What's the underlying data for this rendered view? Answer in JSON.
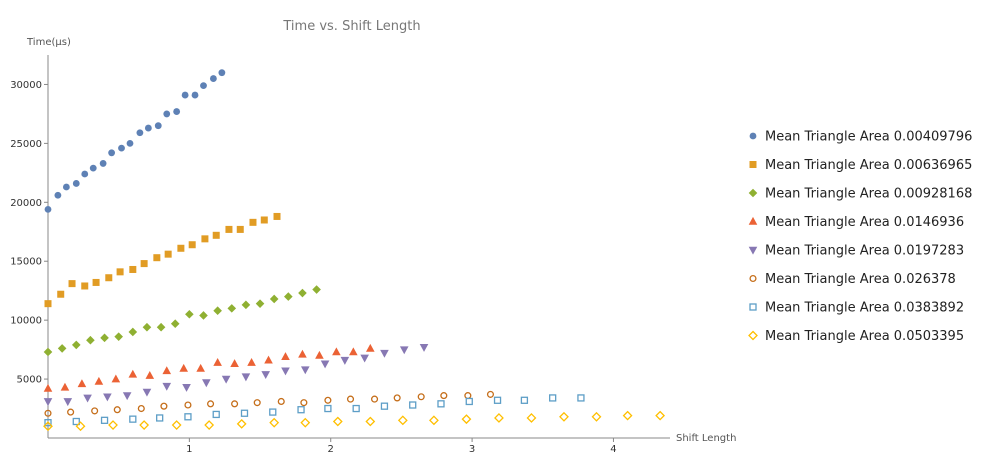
{
  "chart_data": {
    "type": "scatter",
    "title": "Time vs. Shift Length",
    "ylabel": "Time(μs)",
    "xlabel": "Shift Length",
    "xlim": [
      0,
      4.4
    ],
    "ylim": [
      0,
      32500
    ],
    "x_ticks": [
      1,
      2,
      3,
      4
    ],
    "y_ticks": [
      5000,
      10000,
      15000,
      20000,
      25000,
      30000
    ],
    "grid": false,
    "legend_position": "right",
    "series": [
      {
        "name": "Mean Triangle Area 0.00409796",
        "marker": "circle",
        "color": "#5e81b5",
        "points": [
          [
            0.0,
            19400
          ],
          [
            0.07,
            20600
          ],
          [
            0.13,
            21300
          ],
          [
            0.2,
            21600
          ],
          [
            0.26,
            22400
          ],
          [
            0.32,
            22900
          ],
          [
            0.39,
            23300
          ],
          [
            0.45,
            24200
          ],
          [
            0.52,
            24600
          ],
          [
            0.58,
            25000
          ],
          [
            0.65,
            25900
          ],
          [
            0.71,
            26300
          ],
          [
            0.78,
            26500
          ],
          [
            0.84,
            27500
          ],
          [
            0.91,
            27700
          ],
          [
            0.97,
            29100
          ],
          [
            1.04,
            29100
          ],
          [
            1.1,
            29900
          ],
          [
            1.17,
            30500
          ],
          [
            1.23,
            31000
          ]
        ]
      },
      {
        "name": "Mean Triangle Area 0.00636965",
        "marker": "square",
        "color": "#e19c24",
        "points": [
          [
            0.0,
            11400
          ],
          [
            0.09,
            12200
          ],
          [
            0.17,
            13100
          ],
          [
            0.26,
            12900
          ],
          [
            0.34,
            13200
          ],
          [
            0.43,
            13600
          ],
          [
            0.51,
            14100
          ],
          [
            0.6,
            14300
          ],
          [
            0.68,
            14800
          ],
          [
            0.77,
            15300
          ],
          [
            0.85,
            15600
          ],
          [
            0.94,
            16100
          ],
          [
            1.02,
            16400
          ],
          [
            1.11,
            16900
          ],
          [
            1.19,
            17200
          ],
          [
            1.28,
            17700
          ],
          [
            1.36,
            17700
          ],
          [
            1.45,
            18300
          ],
          [
            1.53,
            18500
          ],
          [
            1.62,
            18800
          ]
        ]
      },
      {
        "name": "Mean Triangle Area 0.00928168",
        "marker": "diamond",
        "color": "#8fb032",
        "points": [
          [
            0.0,
            7300
          ],
          [
            0.1,
            7600
          ],
          [
            0.2,
            7900
          ],
          [
            0.3,
            8300
          ],
          [
            0.4,
            8500
          ],
          [
            0.5,
            8600
          ],
          [
            0.6,
            9000
          ],
          [
            0.7,
            9400
          ],
          [
            0.8,
            9400
          ],
          [
            0.9,
            9700
          ],
          [
            1.0,
            10500
          ],
          [
            1.1,
            10400
          ],
          [
            1.2,
            10800
          ],
          [
            1.3,
            11000
          ],
          [
            1.4,
            11300
          ],
          [
            1.5,
            11400
          ],
          [
            1.6,
            11800
          ],
          [
            1.7,
            12000
          ],
          [
            1.8,
            12300
          ],
          [
            1.9,
            12600
          ]
        ]
      },
      {
        "name": "Mean Triangle Area 0.0146936",
        "marker": "triangle-up",
        "color": "#eb6235",
        "points": [
          [
            0.0,
            4200
          ],
          [
            0.12,
            4300
          ],
          [
            0.24,
            4600
          ],
          [
            0.36,
            4800
          ],
          [
            0.48,
            5000
          ],
          [
            0.6,
            5400
          ],
          [
            0.72,
            5300
          ],
          [
            0.84,
            5700
          ],
          [
            0.96,
            5900
          ],
          [
            1.08,
            5900
          ],
          [
            1.2,
            6400
          ],
          [
            1.32,
            6300
          ],
          [
            1.44,
            6400
          ],
          [
            1.56,
            6600
          ],
          [
            1.68,
            6900
          ],
          [
            1.8,
            7100
          ],
          [
            1.92,
            7000
          ],
          [
            2.04,
            7300
          ],
          [
            2.16,
            7300
          ],
          [
            2.28,
            7600
          ]
        ]
      },
      {
        "name": "Mean Triangle Area 0.0197283",
        "marker": "triangle-down",
        "color": "#8778b3",
        "points": [
          [
            0.0,
            3100
          ],
          [
            0.14,
            3100
          ],
          [
            0.28,
            3400
          ],
          [
            0.42,
            3500
          ],
          [
            0.56,
            3600
          ],
          [
            0.7,
            3900
          ],
          [
            0.84,
            4400
          ],
          [
            0.98,
            4300
          ],
          [
            1.12,
            4700
          ],
          [
            1.26,
            5000
          ],
          [
            1.4,
            5200
          ],
          [
            1.54,
            5400
          ],
          [
            1.68,
            5700
          ],
          [
            1.82,
            5800
          ],
          [
            1.96,
            6300
          ],
          [
            2.1,
            6600
          ],
          [
            2.24,
            6800
          ],
          [
            2.38,
            7200
          ],
          [
            2.52,
            7500
          ],
          [
            2.66,
            7700
          ]
        ]
      },
      {
        "name": "Mean Triangle Area 0.026378",
        "marker": "circle-open",
        "color": "#c56e1a",
        "points": [
          [
            0.0,
            2100
          ],
          [
            0.16,
            2200
          ],
          [
            0.33,
            2300
          ],
          [
            0.49,
            2400
          ],
          [
            0.66,
            2500
          ],
          [
            0.82,
            2700
          ],
          [
            0.99,
            2800
          ],
          [
            1.15,
            2900
          ],
          [
            1.32,
            2900
          ],
          [
            1.48,
            3000
          ],
          [
            1.65,
            3100
          ],
          [
            1.81,
            3000
          ],
          [
            1.98,
            3200
          ],
          [
            2.14,
            3300
          ],
          [
            2.31,
            3300
          ],
          [
            2.47,
            3400
          ],
          [
            2.64,
            3500
          ],
          [
            2.8,
            3600
          ],
          [
            2.97,
            3600
          ],
          [
            3.13,
            3700
          ]
        ]
      },
      {
        "name": "Mean Triangle Area 0.0383892",
        "marker": "square-open",
        "color": "#5d9ec7",
        "points": [
          [
            0.0,
            1300
          ],
          [
            0.2,
            1400
          ],
          [
            0.4,
            1500
          ],
          [
            0.6,
            1600
          ],
          [
            0.79,
            1700
          ],
          [
            0.99,
            1800
          ],
          [
            1.19,
            2000
          ],
          [
            1.39,
            2100
          ],
          [
            1.59,
            2200
          ],
          [
            1.79,
            2400
          ],
          [
            1.98,
            2500
          ],
          [
            2.18,
            2500
          ],
          [
            2.38,
            2700
          ],
          [
            2.58,
            2800
          ],
          [
            2.78,
            2900
          ],
          [
            2.98,
            3100
          ],
          [
            3.18,
            3200
          ],
          [
            3.37,
            3200
          ],
          [
            3.57,
            3400
          ],
          [
            3.77,
            3400
          ]
        ]
      },
      {
        "name": "Mean Triangle Area 0.0503395",
        "marker": "diamond-open",
        "color": "#ffbf00",
        "points": [
          [
            0.0,
            1000
          ],
          [
            0.23,
            1000
          ],
          [
            0.46,
            1100
          ],
          [
            0.68,
            1100
          ],
          [
            0.91,
            1100
          ],
          [
            1.14,
            1100
          ],
          [
            1.37,
            1200
          ],
          [
            1.6,
            1300
          ],
          [
            1.82,
            1300
          ],
          [
            2.05,
            1400
          ],
          [
            2.28,
            1400
          ],
          [
            2.51,
            1500
          ],
          [
            2.73,
            1500
          ],
          [
            2.96,
            1600
          ],
          [
            3.19,
            1700
          ],
          [
            3.42,
            1700
          ],
          [
            3.65,
            1800
          ],
          [
            3.88,
            1800
          ],
          [
            4.1,
            1900
          ],
          [
            4.33,
            1900
          ]
        ]
      }
    ]
  }
}
